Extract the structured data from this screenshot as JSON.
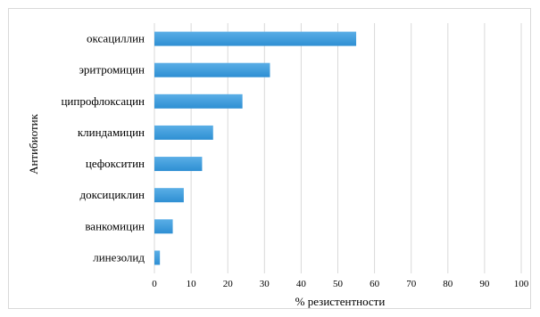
{
  "chart_data": {
    "type": "bar",
    "orientation": "horizontal",
    "categories": [
      "оксациллин",
      "эритромицин",
      "ципрофлоксацин",
      "клиндамицин",
      "цефокситин",
      "доксициклин",
      "ванкомицин",
      "линезолид"
    ],
    "values": [
      55,
      31.5,
      24,
      16,
      13,
      8,
      5,
      1.5
    ],
    "xlabel": "% резистентности",
    "ylabel": "Антибиотик",
    "xlim": [
      0,
      100
    ],
    "xticks": [
      0,
      10,
      20,
      30,
      40,
      50,
      60,
      70,
      80,
      90,
      100
    ],
    "grid": "vertical",
    "legend": "none",
    "bar_color": "#2e8fd3",
    "bar_color_light": "#5aaee6",
    "grid_color": "#d9d9d9"
  }
}
